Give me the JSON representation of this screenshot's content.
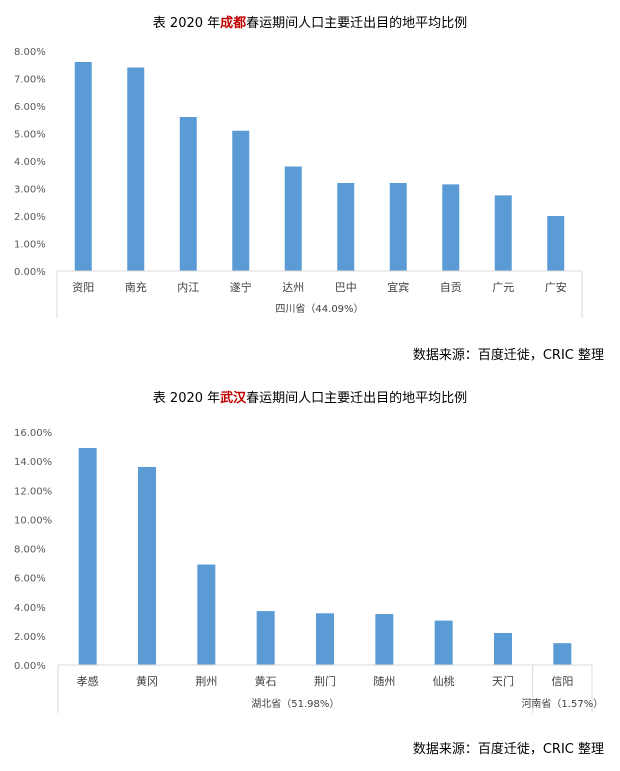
{
  "charts": [
    {
      "title_prefix": "表  2020 年",
      "title_city": "成都",
      "title_suffix": "春运期间人口主要迁出目的地平均比例",
      "source": "数据来源：百度迁徙，CRIC 整理"
    },
    {
      "title_prefix": "表  2020 年",
      "title_city": "武汉",
      "title_suffix": "春运期间人口主要迁出目的地平均比例",
      "source": "数据来源：百度迁徙，CRIC 整理"
    }
  ],
  "colors": {
    "bar": "#5b9bd5",
    "title_highlight": "#c00000",
    "axis": "#d9d9d9"
  },
  "chart_data": [
    {
      "type": "bar",
      "title": "表 2020 年成都春运期间人口主要迁出目的地平均比例",
      "categories": [
        "资阳",
        "南充",
        "内江",
        "遂宁",
        "达州",
        "巴中",
        "宜宾",
        "自贡",
        "广元",
        "广安"
      ],
      "values": [
        7.6,
        7.4,
        5.6,
        5.1,
        3.8,
        3.2,
        3.2,
        3.15,
        2.75,
        2.0
      ],
      "ylim": [
        0,
        8
      ],
      "yticks": [
        "0.00%",
        "1.00%",
        "2.00%",
        "3.00%",
        "4.00%",
        "5.00%",
        "6.00%",
        "7.00%",
        "8.00%"
      ],
      "groups": [
        {
          "label": "四川省（44.09%）",
          "count": 10
        }
      ],
      "grid": false,
      "legend": "none"
    },
    {
      "type": "bar",
      "title": "表 2020 年武汉春运期间人口主要迁出目的地平均比例",
      "categories": [
        "孝感",
        "黄冈",
        "荆州",
        "黄石",
        "荆门",
        "随州",
        "仙桃",
        "天门",
        "信阳"
      ],
      "values": [
        14.9,
        13.6,
        6.9,
        3.7,
        3.55,
        3.5,
        3.05,
        2.2,
        1.5
      ],
      "ylim": [
        0,
        16
      ],
      "yticks": [
        "0.00%",
        "2.00%",
        "4.00%",
        "6.00%",
        "8.00%",
        "10.00%",
        "12.00%",
        "14.00%",
        "16.00%"
      ],
      "groups": [
        {
          "label": "湖北省（51.98%）",
          "count": 8
        },
        {
          "label": "河南省（1.57%）",
          "count": 1
        }
      ],
      "grid": false,
      "legend": "none"
    }
  ]
}
